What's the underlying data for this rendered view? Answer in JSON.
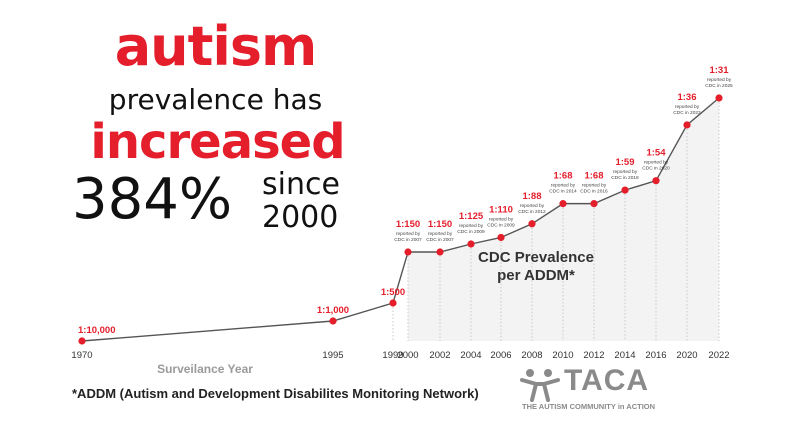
{
  "headline": {
    "word1": "autism",
    "line2": "prevalence has",
    "word3": "increased",
    "percent": "384%",
    "since_line1": "since",
    "since_line2": "2000"
  },
  "chart_data": {
    "type": "line",
    "xlabel": "Surveilance Year",
    "center_label_line1": "CDC Prevalence",
    "center_label_line2": "per ADDM*",
    "x_ticks": [
      "1970",
      "1995",
      "1999",
      "2000",
      "2002",
      "2004",
      "2006",
      "2008",
      "2010",
      "2012",
      "2014",
      "2016",
      "2020",
      "2022"
    ],
    "points": [
      {
        "x": 1970,
        "label": "1:10,000",
        "rate_per_10000": 1,
        "note": ""
      },
      {
        "x": 1995,
        "label": "1:1,000",
        "rate_per_10000": 10,
        "note": ""
      },
      {
        "x": 1999,
        "label": "1:500",
        "rate_per_10000": 20,
        "note": ""
      },
      {
        "x": 2000,
        "label": "1:150",
        "rate_per_10000": 66.7,
        "note": "reported by CDC in 2007"
      },
      {
        "x": 2002,
        "label": "1:150",
        "rate_per_10000": 66.7,
        "note": "reported by CDC in 2007"
      },
      {
        "x": 2004,
        "label": "1:125",
        "rate_per_10000": 80,
        "note": "reported by CDC in 2009"
      },
      {
        "x": 2006,
        "label": "1:110",
        "rate_per_10000": 90.9,
        "note": "reported by CDC in 2009"
      },
      {
        "x": 2008,
        "label": "1:88",
        "rate_per_10000": 113.6,
        "note": "reported by CDC in 2012"
      },
      {
        "x": 2010,
        "label": "1:68",
        "rate_per_10000": 147.1,
        "note": "reported by CDC in 2014"
      },
      {
        "x": 2012,
        "label": "1:68",
        "rate_per_10000": 147.1,
        "note": "reported by CDC in 2016"
      },
      {
        "x": 2014,
        "label": "1:59",
        "rate_per_10000": 169.5,
        "note": "reported by CDC in 2018"
      },
      {
        "x": 2016,
        "label": "1:54",
        "rate_per_10000": 185.2,
        "note": "reported by CDC in 2020"
      },
      {
        "x": 2020,
        "label": "1:36",
        "rate_per_10000": 277.8,
        "note": "reported by CDC in 2023"
      },
      {
        "x": 2022,
        "label": "1:31",
        "rate_per_10000": 322.6,
        "note": "reported by CDC in 2025"
      }
    ],
    "colors": {
      "marker": "#e41e2b",
      "label": "#e41e2b",
      "line": "#555555",
      "fill": "#f3f3f3"
    }
  },
  "footnote": "*ADDM (Autism and Development Disabilites Monitoring Network)",
  "logo": {
    "name": "TACA",
    "tagline": "THE AUTISM COMMUNITY in ACTION",
    "icon": "people-icon"
  }
}
